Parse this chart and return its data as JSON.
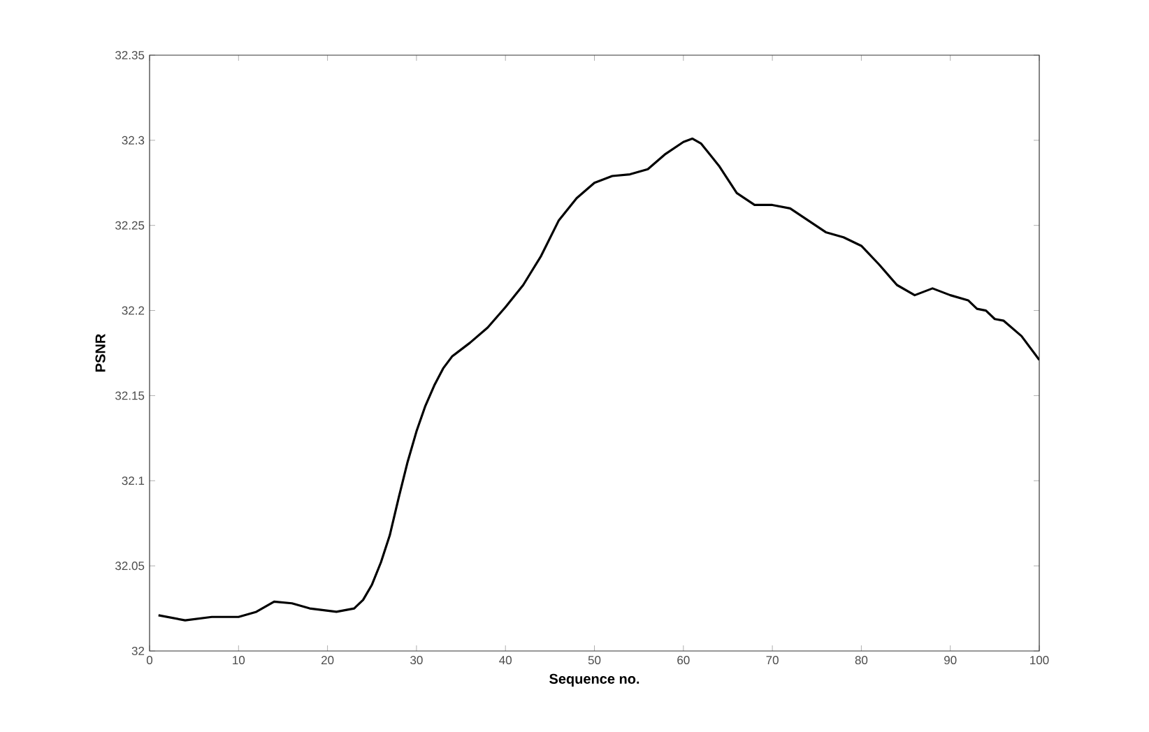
{
  "chart_data": {
    "type": "line",
    "xlabel": "Sequence no.",
    "ylabel": "PSNR",
    "color": "#000000",
    "x": [
      1,
      4,
      7,
      10,
      12,
      14,
      16,
      18,
      21,
      23,
      24,
      25,
      26,
      27,
      28,
      29,
      30,
      31,
      32,
      33,
      34,
      36,
      38,
      40,
      42,
      44,
      46,
      48,
      50,
      52,
      54,
      56,
      58,
      60,
      61,
      62,
      64,
      66,
      68,
      70,
      72,
      74,
      76,
      78,
      80,
      82,
      84,
      86,
      88,
      90,
      92,
      93,
      94,
      95,
      96,
      98,
      100
    ],
    "values": [
      32.021,
      32.018,
      32.02,
      32.02,
      32.023,
      32.029,
      32.028,
      32.025,
      32.023,
      32.025,
      32.03,
      32.039,
      32.052,
      32.068,
      32.09,
      32.111,
      32.129,
      32.144,
      32.156,
      32.166,
      32.173,
      32.181,
      32.19,
      32.202,
      32.215,
      32.232,
      32.253,
      32.266,
      32.275,
      32.279,
      32.28,
      32.283,
      32.292,
      32.299,
      32.301,
      32.298,
      32.285,
      32.269,
      32.262,
      32.262,
      32.26,
      32.253,
      32.246,
      32.243,
      32.238,
      32.227,
      32.215,
      32.209,
      32.213,
      32.209,
      32.206,
      32.201,
      32.2,
      32.195,
      32.194,
      32.185,
      32.171
    ],
    "xlim": [
      0,
      100
    ],
    "ylim": [
      32,
      32.35
    ],
    "xticks": [
      0,
      10,
      20,
      30,
      40,
      50,
      60,
      70,
      80,
      90,
      100
    ],
    "yticks": [
      32,
      32.05,
      32.1,
      32.15,
      32.2,
      32.25,
      32.3,
      32.35
    ]
  }
}
